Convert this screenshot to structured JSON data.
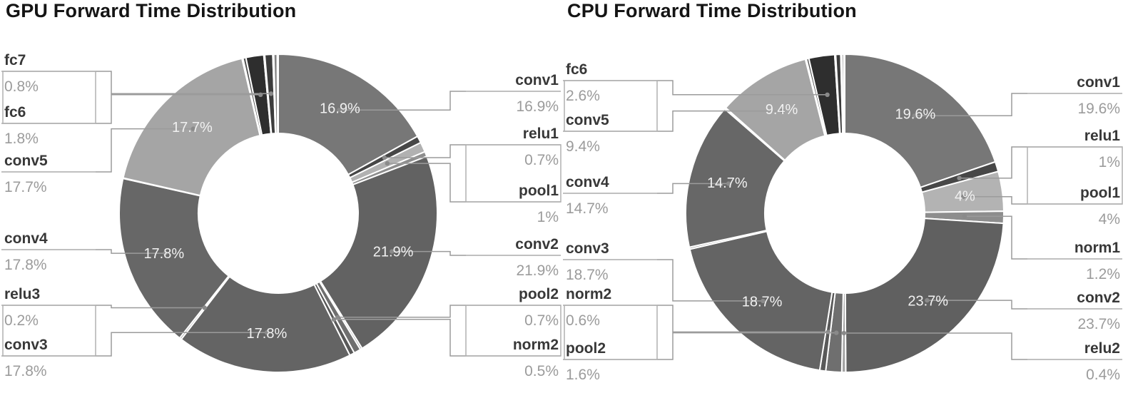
{
  "figure": {
    "background": "#ffffff",
    "style": "greyscale donut charts with labeled callouts",
    "accent_line_color": "#9b9b9b",
    "callout_name_color": "#383838",
    "callout_value_color": "#9b9b9b",
    "inner_label_color": "#f1f1f1"
  },
  "chart_data": [
    {
      "type": "pie",
      "variant": "donut",
      "title": "GPU Forward Time Distribution",
      "unit": "%",
      "legend_position": "callouts-left-right",
      "inner_label_threshold_pct": 4,
      "slices": [
        {
          "label": "conv1",
          "pct": 16.9,
          "display": "16.9%",
          "color": "#777777",
          "callout": "right",
          "inner": true
        },
        {
          "label": "relu1",
          "pct": 0.7,
          "display": "0.7%",
          "color": "#474747",
          "callout": "right",
          "inner": false
        },
        {
          "label": "pool1",
          "pct": 1.0,
          "display": "1%",
          "color": "#b1b1b1",
          "callout": "right",
          "inner": false
        },
        {
          "label": "",
          "pct": 0.5,
          "display": "",
          "color": "#8d8d8d",
          "callout": null,
          "inner": false
        },
        {
          "label": "conv2",
          "pct": 21.9,
          "display": "21.9%",
          "color": "#626262",
          "callout": "right",
          "inner": true
        },
        {
          "label": "",
          "pct": 0.2,
          "display": "",
          "color": "#a3a3a3",
          "callout": null,
          "inner": false
        },
        {
          "label": "pool2",
          "pct": 0.7,
          "display": "0.7%",
          "color": "#6f6f6f",
          "callout": "right",
          "inner": false
        },
        {
          "label": "norm2",
          "pct": 0.5,
          "display": "0.5%",
          "color": "#595959",
          "callout": "right",
          "inner": false
        },
        {
          "label": "conv3",
          "pct": 17.8,
          "display": "17.8%",
          "color": "#646464",
          "callout": "left",
          "inner": true
        },
        {
          "label": "relu3",
          "pct": 0.2,
          "display": "0.2%",
          "color": "#9c9c9c",
          "callout": "left",
          "inner": false
        },
        {
          "label": "conv4",
          "pct": 17.8,
          "display": "17.8%",
          "color": "#676767",
          "callout": "left",
          "inner": true
        },
        {
          "label": "",
          "pct": 0.05,
          "display": "",
          "color": "#919191",
          "callout": null,
          "inner": false
        },
        {
          "label": "conv5",
          "pct": 17.7,
          "display": "17.7%",
          "color": "#a5a5a5",
          "callout": "left",
          "inner": true
        },
        {
          "label": "",
          "pct": 0.1,
          "display": "",
          "color": "#7b7b7b",
          "callout": null,
          "inner": false
        },
        {
          "label": "",
          "pct": 0.3,
          "display": "",
          "color": "#545454",
          "callout": null,
          "inner": false
        },
        {
          "label": "fc6",
          "pct": 1.8,
          "display": "1.8%",
          "color": "#2e2e2e",
          "callout": "left",
          "inner": false
        },
        {
          "label": "",
          "pct": 0.1,
          "display": "",
          "color": "#9a9a9a",
          "callout": null,
          "inner": false
        },
        {
          "label": "fc7",
          "pct": 0.8,
          "display": "0.8%",
          "color": "#3c3c3c",
          "callout": "left",
          "inner": false
        },
        {
          "label": "",
          "pct": 0.1,
          "display": "",
          "color": "#c2c2c2",
          "callout": null,
          "inner": false
        },
        {
          "label": "",
          "pct": 0.35,
          "display": "",
          "color": "#828282",
          "callout": null,
          "inner": false
        },
        {
          "label": "",
          "pct": 0.1,
          "display": "",
          "color": "#6b6b6b",
          "callout": null,
          "inner": false
        }
      ]
    },
    {
      "type": "pie",
      "variant": "donut",
      "title": "CPU Forward Time Distribution",
      "unit": "%",
      "legend_position": "callouts-left-right",
      "inner_label_threshold_pct": 4,
      "slices": [
        {
          "label": "conv1",
          "pct": 19.6,
          "display": "19.6%",
          "color": "#777777",
          "callout": "right",
          "inner": true
        },
        {
          "label": "relu1",
          "pct": 1.0,
          "display": "1%",
          "color": "#474747",
          "callout": "right",
          "inner": false
        },
        {
          "label": "pool1",
          "pct": 4.0,
          "display": "4%",
          "color": "#b3b3b3",
          "callout": "right",
          "inner": true
        },
        {
          "label": "norm1",
          "pct": 1.2,
          "display": "1.2%",
          "color": "#8d8d8d",
          "callout": "right",
          "inner": false
        },
        {
          "label": "conv2",
          "pct": 23.7,
          "display": "23.7%",
          "color": "#606060",
          "callout": "right",
          "inner": true
        },
        {
          "label": "relu2",
          "pct": 0.4,
          "display": "0.4%",
          "color": "#a3a3a3",
          "callout": "right",
          "inner": false
        },
        {
          "label": "pool2",
          "pct": 1.6,
          "display": "1.6%",
          "color": "#6f6f6f",
          "callout": "left",
          "inner": false
        },
        {
          "label": "norm2",
          "pct": 0.6,
          "display": "0.6%",
          "color": "#595959",
          "callout": "left",
          "inner": false
        },
        {
          "label": "conv3",
          "pct": 18.7,
          "display": "18.7%",
          "color": "#646464",
          "callout": "left",
          "inner": true
        },
        {
          "label": "",
          "pct": 0.2,
          "display": "",
          "color": "#9c9c9c",
          "callout": null,
          "inner": false
        },
        {
          "label": "conv4",
          "pct": 14.7,
          "display": "14.7%",
          "color": "#676767",
          "callout": "left",
          "inner": true
        },
        {
          "label": "",
          "pct": 0.15,
          "display": "",
          "color": "#919191",
          "callout": null,
          "inner": false
        },
        {
          "label": "conv5",
          "pct": 9.4,
          "display": "9.4%",
          "color": "#a5a5a5",
          "callout": "left",
          "inner": true
        },
        {
          "label": "",
          "pct": 0.1,
          "display": "",
          "color": "#7b7b7b",
          "callout": null,
          "inner": false
        },
        {
          "label": "",
          "pct": 0.25,
          "display": "",
          "color": "#545454",
          "callout": null,
          "inner": false
        },
        {
          "label": "fc6",
          "pct": 2.6,
          "display": "2.6%",
          "color": "#2e2e2e",
          "callout": "left",
          "inner": false
        },
        {
          "label": "",
          "pct": 0.1,
          "display": "",
          "color": "#9a9a9a",
          "callout": null,
          "inner": false
        },
        {
          "label": "",
          "pct": 0.5,
          "display": "",
          "color": "#3c3c3c",
          "callout": null,
          "inner": false
        },
        {
          "label": "",
          "pct": 0.1,
          "display": "",
          "color": "#c2c2c2",
          "callout": null,
          "inner": false
        },
        {
          "label": "",
          "pct": 0.2,
          "display": "",
          "color": "#828282",
          "callout": null,
          "inner": false
        },
        {
          "label": "",
          "pct": 0.1,
          "display": "",
          "color": "#6b6b6b",
          "callout": null,
          "inner": false
        }
      ]
    }
  ]
}
